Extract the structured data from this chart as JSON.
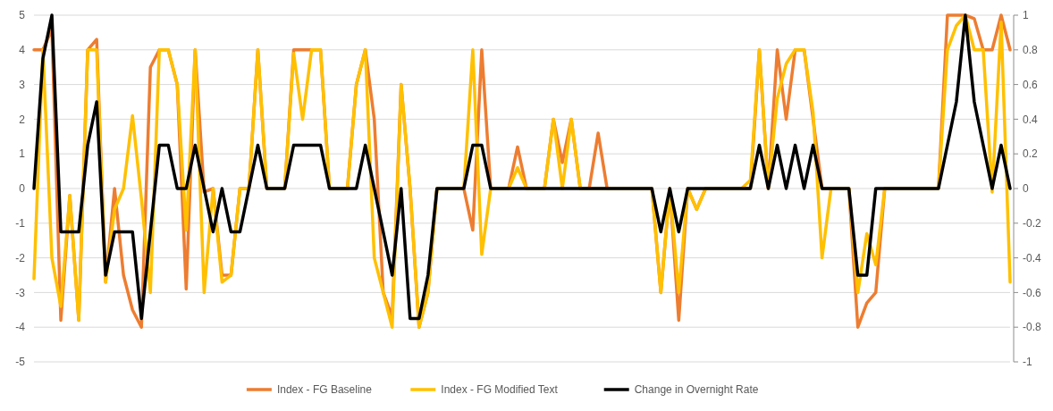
{
  "chart_data": {
    "type": "line",
    "categories": [
      null,
      null,
      null,
      null,
      null,
      null,
      null,
      null,
      null,
      null,
      null,
      null,
      null,
      null,
      null,
      null,
      null,
      null,
      null,
      null,
      null,
      null,
      null,
      null,
      null,
      null,
      null,
      null,
      null,
      null,
      null,
      null,
      null,
      null,
      null,
      null,
      null,
      null,
      null,
      null,
      null,
      null,
      null,
      null,
      null,
      null,
      null,
      null,
      null,
      null,
      null,
      null,
      null,
      null,
      null,
      null,
      null,
      null,
      null,
      null,
      null,
      null,
      null,
      null,
      null,
      null,
      null,
      null,
      null,
      null,
      null,
      null,
      null,
      null,
      null,
      null,
      null,
      null,
      null,
      null,
      null,
      null,
      null,
      null,
      null,
      null,
      null,
      null,
      null,
      null,
      null,
      null,
      null,
      null,
      null,
      null,
      null,
      null,
      null,
      null,
      null,
      null,
      null,
      null,
      null,
      null,
      null,
      null,
      null,
      null
    ],
    "series": [
      {
        "name": "Index - FG Baseline",
        "color": "#ed7d31",
        "values": [
          4,
          4,
          4.6,
          -3.8,
          -0.2,
          -3.8,
          4,
          4.3,
          -2.7,
          0,
          -2.5,
          -3.5,
          -4,
          3.5,
          4,
          4,
          3,
          -2.9,
          4,
          -0.1,
          0,
          -2.5,
          -2.5,
          0,
          0,
          4,
          0,
          0,
          0,
          4,
          4,
          4,
          4,
          0,
          0,
          0,
          3,
          4,
          2,
          -3,
          -3.7,
          3,
          0,
          -4,
          -3,
          0,
          0,
          0,
          0,
          -1.2,
          4,
          0,
          0,
          0,
          1.2,
          0,
          0,
          0,
          2,
          0.75,
          2,
          0,
          0,
          1.6,
          0,
          0,
          0,
          0,
          0,
          0,
          -3,
          0,
          -3.8,
          0,
          -0.6,
          0,
          0,
          0,
          0,
          0,
          0,
          4,
          0,
          4,
          2,
          4,
          4,
          2,
          0,
          0,
          0,
          0,
          -4,
          -3.3,
          -3,
          0,
          0,
          0,
          0,
          0,
          0,
          0,
          5,
          5,
          5,
          4.9,
          4,
          4,
          5,
          4
        ]
      },
      {
        "name": "Index - FG Modified Text",
        "color": "#ffc000",
        "values": [
          -2.6,
          4,
          -2,
          -3.4,
          -0.2,
          -3.8,
          4,
          4,
          -2.7,
          -0.6,
          0,
          2.1,
          -0.3,
          -3,
          4,
          4,
          3,
          -1.2,
          4,
          -3,
          0,
          -2.7,
          -2.5,
          0,
          0,
          4,
          0,
          0,
          0,
          3.9,
          2,
          4,
          4,
          0,
          0,
          0,
          3,
          4,
          -2,
          -3,
          -4,
          3,
          0,
          -4,
          -3,
          0,
          0,
          0,
          0,
          4,
          -1.9,
          0,
          0,
          0,
          0.6,
          0,
          0,
          0,
          2,
          0,
          2,
          0,
          0,
          0,
          0,
          0,
          0,
          0,
          0,
          0,
          -3,
          0,
          -3,
          0,
          -0.6,
          0,
          0,
          0,
          0,
          0,
          0.24,
          4,
          0,
          2.6,
          3.6,
          4,
          4,
          2.2,
          -2,
          0,
          0,
          0,
          -3,
          -1.3,
          -2.2,
          0,
          0,
          0,
          0,
          0,
          0,
          0,
          4,
          4.7,
          5,
          4,
          4,
          -0.1,
          4.8,
          -2.7
        ]
      },
      {
        "name": "Change in Overnight Rate",
        "color": "#000000",
        "axis": "y2",
        "values": [
          0,
          0.75,
          1,
          -0.25,
          -0.25,
          -0.25,
          0.25,
          0.5,
          -0.5,
          -0.25,
          -0.25,
          -0.25,
          -0.75,
          -0.25,
          0.25,
          0.25,
          0,
          0,
          0.25,
          0,
          -0.25,
          0,
          -0.25,
          -0.25,
          0,
          0.25,
          0,
          0,
          0,
          0.25,
          0.25,
          0.25,
          0.25,
          0,
          0,
          0,
          0,
          0.25,
          0,
          -0.25,
          -0.5,
          0,
          -0.75,
          -0.75,
          -0.5,
          0,
          0,
          0,
          0,
          0.25,
          0.25,
          0,
          0,
          0,
          0,
          0,
          0,
          0,
          0,
          0,
          0,
          0,
          0,
          0,
          0,
          0,
          0,
          0,
          0,
          0,
          -0.25,
          0,
          -0.25,
          0,
          0,
          0,
          0,
          0,
          0,
          0,
          0,
          0.25,
          0,
          0.25,
          0,
          0.25,
          0,
          0.25,
          0,
          0,
          0,
          0,
          -0.5,
          -0.5,
          0,
          0,
          0,
          0,
          0,
          0,
          0,
          0,
          0.25,
          0.5,
          1,
          0.5,
          0.25,
          0,
          0.25,
          0
        ]
      }
    ],
    "ylim": [
      -5,
      5
    ],
    "yticks": [
      -5,
      -4,
      -3,
      -2,
      -1,
      0,
      1,
      2,
      3,
      4,
      5
    ],
    "y2lim": [
      -1,
      1
    ],
    "y2ticks": [
      -1,
      -0.8,
      -0.6,
      -0.4,
      -0.2,
      0,
      0.2,
      0.4,
      0.6,
      0.8,
      1
    ],
    "grid": "y",
    "legend": "bottom",
    "marker": "none",
    "line_style": "solid"
  }
}
